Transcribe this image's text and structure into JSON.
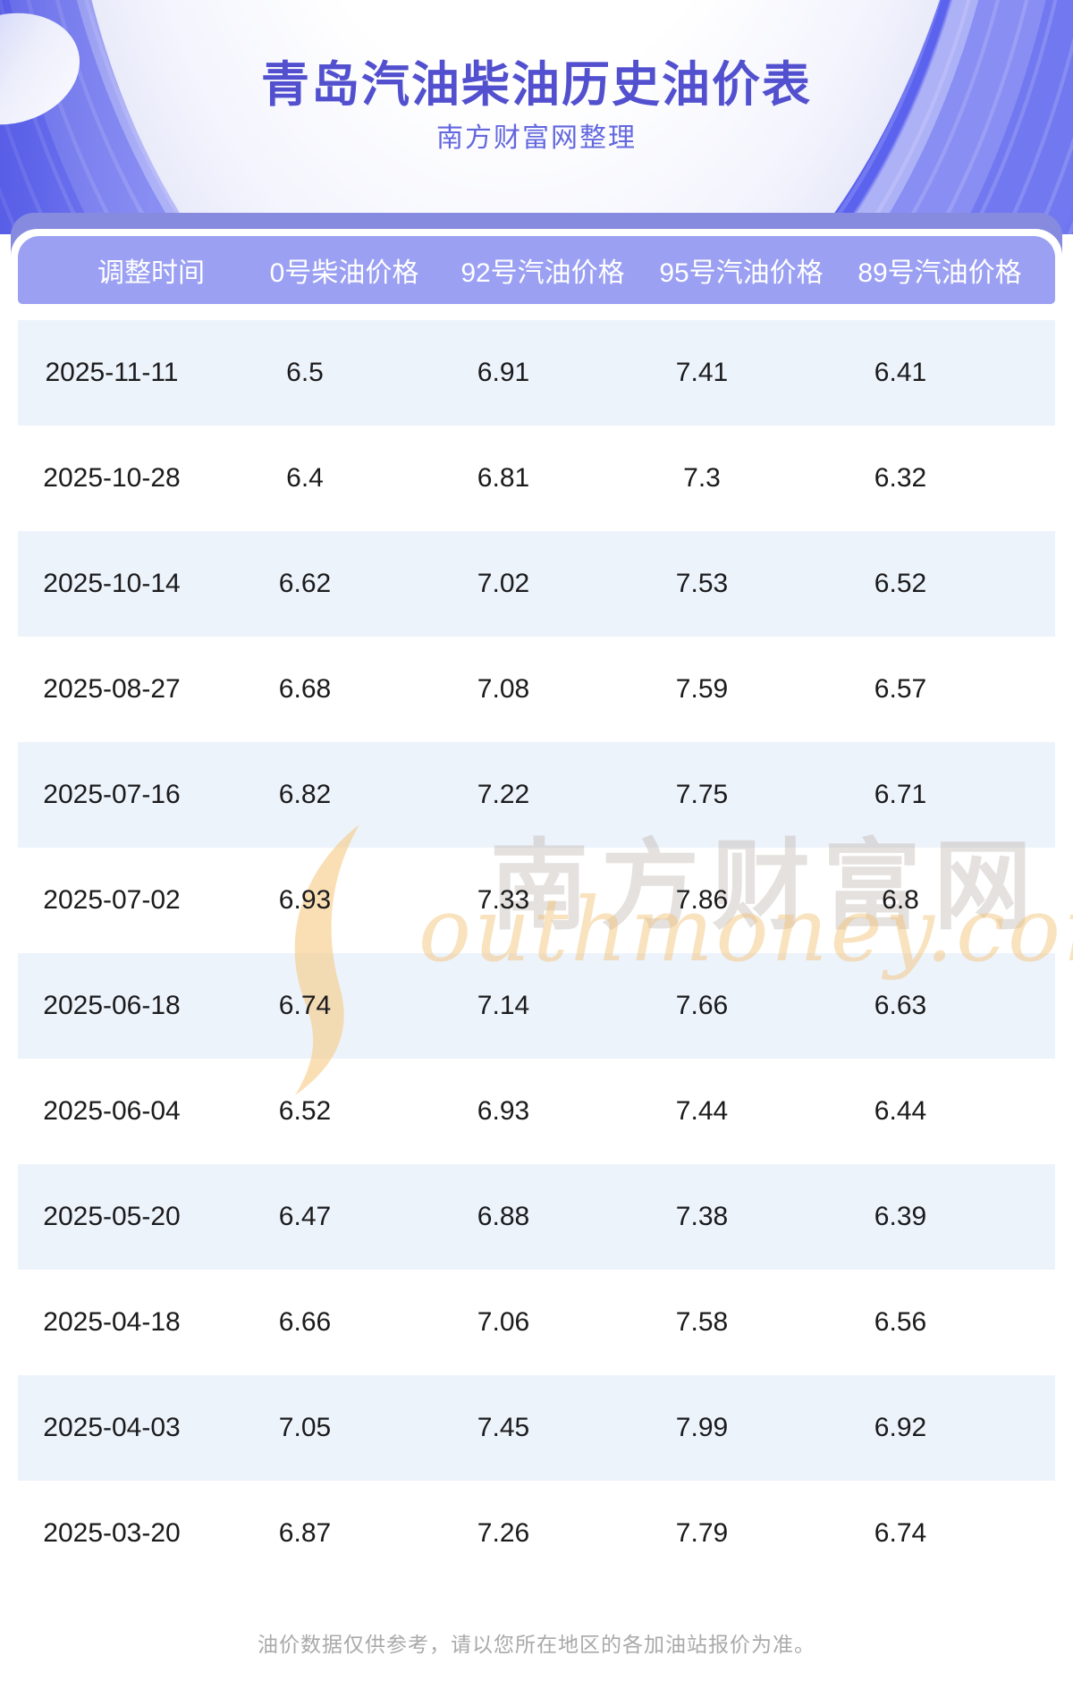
{
  "banner": {
    "title": "青岛汽油柴油历史油价表",
    "subtitle": "南方财富网整理"
  },
  "table": {
    "columns": [
      "调整时间",
      "0号柴油价格",
      "92号汽油价格",
      "95号汽油价格",
      "89号汽油价格"
    ],
    "rows": [
      [
        "2025-11-11",
        "6.5",
        "6.91",
        "7.41",
        "6.41"
      ],
      [
        "2025-10-28",
        "6.4",
        "6.81",
        "7.3",
        "6.32"
      ],
      [
        "2025-10-14",
        "6.62",
        "7.02",
        "7.53",
        "6.52"
      ],
      [
        "2025-08-27",
        "6.68",
        "7.08",
        "7.59",
        "6.57"
      ],
      [
        "2025-07-16",
        "6.82",
        "7.22",
        "7.75",
        "6.71"
      ],
      [
        "2025-07-02",
        "6.93",
        "7.33",
        "7.86",
        "6.8"
      ],
      [
        "2025-06-18",
        "6.74",
        "7.14",
        "7.66",
        "6.63"
      ],
      [
        "2025-06-04",
        "6.52",
        "6.93",
        "7.44",
        "6.44"
      ],
      [
        "2025-05-20",
        "6.47",
        "6.88",
        "7.38",
        "6.39"
      ],
      [
        "2025-04-18",
        "6.66",
        "7.06",
        "7.58",
        "6.56"
      ],
      [
        "2025-04-03",
        "7.05",
        "7.45",
        "7.99",
        "6.92"
      ],
      [
        "2025-03-20",
        "6.87",
        "7.26",
        "7.79",
        "6.74"
      ]
    ]
  },
  "watermark": {
    "chinese": "南方财富网",
    "domain": "outhmoney.com"
  },
  "footer": {
    "disclaimer": "油价数据仅供参考，请以您所在地区的各加油站报价为准。"
  },
  "colors": {
    "banner_purple": "#5b62ee",
    "title_text": "#5250ce",
    "subtitle_text": "#6367de",
    "header_bar": "#9ba0f2",
    "header_back_bar": "#868bdf",
    "row_alt_blue": "#edf3fb",
    "row_text": "#1b1b1d",
    "watermark_orange": "#f3c378",
    "footer_gray": "#a9a9a9"
  }
}
